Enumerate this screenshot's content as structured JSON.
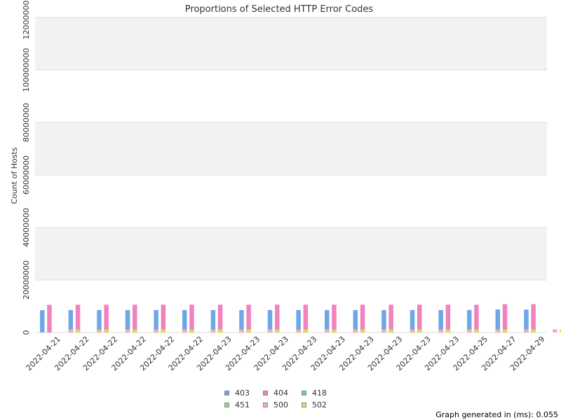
{
  "chart_data": {
    "type": "bar",
    "title": "Proportions of Selected HTTP Error Codes",
    "ylabel": "Count of Hosts",
    "xlabel": "",
    "ylim": [
      0,
      12000000
    ],
    "yticks": [
      0,
      20000000,
      40000000,
      60000000,
      80000000,
      100000000,
      120000000
    ],
    "ytick_labels": [
      "0",
      "20000000",
      "40000000",
      "60000000",
      "80000000",
      "100000000",
      "120000000"
    ],
    "categories": [
      "2022-04-21",
      "2022-04-22",
      "2022-04-22",
      "2022-04-22",
      "2022-04-22",
      "2022-04-22",
      "2022-04-23",
      "2022-04-23",
      "2022-04-23",
      "2022-04-23",
      "2022-04-23",
      "2022-04-23",
      "2022-04-23",
      "2022-04-23",
      "2022-04-23",
      "2022-04-25",
      "2022-04-27",
      "2022-04-29"
    ],
    "series": [
      {
        "name": "403",
        "color": "#6ea6e8",
        "values": [
          8510000,
          8540000,
          8550000,
          8550000,
          8550000,
          8550000,
          8550000,
          8550000,
          8550000,
          8550000,
          8550000,
          8550000,
          8550000,
          8550000,
          8550000,
          8580000,
          8770000,
          8720000
        ]
      },
      {
        "name": "404",
        "color": "#f083be",
        "values": [
          10560000,
          10600000,
          10610000,
          10610000,
          10610000,
          10610000,
          10610000,
          10610000,
          10610000,
          10610000,
          10610000,
          10610000,
          10610000,
          10610000,
          10610000,
          10560000,
          10800000,
          10800000
        ]
      },
      {
        "name": "418",
        "color": "#66d2a2",
        "values": [
          0,
          0,
          0,
          0,
          0,
          0,
          0,
          0,
          0,
          0,
          0,
          0,
          0,
          0,
          0,
          0,
          0,
          0
        ]
      },
      {
        "name": "451",
        "color": "#86e07a",
        "values": [
          0,
          0,
          0,
          0,
          0,
          0,
          0,
          0,
          0,
          0,
          0,
          0,
          0,
          0,
          0,
          0,
          0,
          0
        ]
      },
      {
        "name": "500",
        "color": "#f2b0aa",
        "values": [
          1160000,
          1160000,
          1160000,
          1160000,
          1160000,
          1160000,
          1160000,
          1160000,
          1160000,
          1160000,
          1160000,
          1160000,
          1160000,
          1160000,
          1160000,
          1160000,
          1180000,
          1190000
        ]
      },
      {
        "name": "502",
        "color": "#cfe05a",
        "values": [
          1160000,
          1160000,
          1160000,
          1160000,
          1160000,
          1160000,
          1160000,
          1160000,
          1160000,
          1160000,
          1160000,
          1160000,
          1160000,
          1160000,
          1160000,
          1160000,
          1180000,
          1190000
        ]
      }
    ],
    "grid": true,
    "legend_position": "bottom-center"
  },
  "footer_text": "Graph generated in (ms): 0.055"
}
